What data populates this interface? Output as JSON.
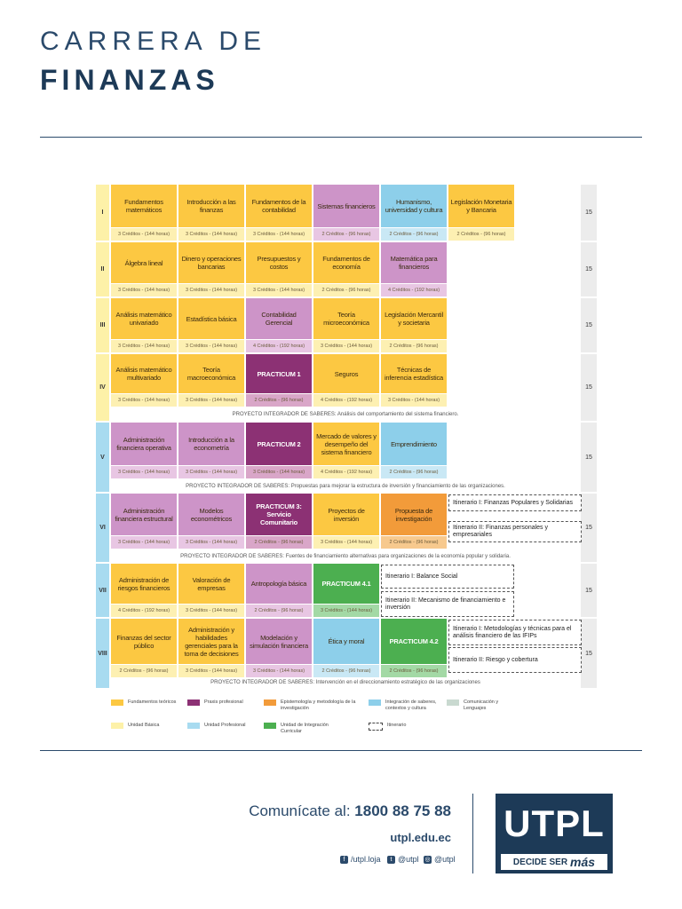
{
  "header": {
    "line1": "CARRERA DE",
    "line2": "FINANZAS"
  },
  "colors": {
    "fundamentos": "#fcc842",
    "fundamentos_light": "#fdf0b2",
    "praxis": "#8c3174",
    "praxis_light": "#d9a6c8",
    "epistemologia": "#f29b3a",
    "epistemologia_light": "#f7c98e",
    "integracion": "#8dcfea",
    "integracion_light": "#c9e8f5",
    "comunicacion": "#c9d9d0",
    "comunicacion_light": "#e3ece6",
    "unidad_basica": "#fdf1a8",
    "unidad_profesional": "#a8dbf0",
    "curricular": "#4caf50",
    "curricular_light": "#a3d9a5",
    "pink": "#cd94c8",
    "pink_light": "#e8c6e3"
  },
  "semesters": [
    {
      "label": "I",
      "total": "15",
      "courses": [
        {
          "name": "Fundamentos matemáticos",
          "credits": "3 Créditos - (144 horas)",
          "color": "#fcc842",
          "light": "#fdf0b2",
          "dark": false
        },
        {
          "name": "Introducción a las finanzas",
          "credits": "3 Créditos - (144 horas)",
          "color": "#fcc842",
          "light": "#fdf0b2",
          "dark": false
        },
        {
          "name": "Fundamentos de la contabilidad",
          "credits": "3 Créditos - (144 horas)",
          "color": "#fcc842",
          "light": "#fdf0b2",
          "dark": false
        },
        {
          "name": "Sistemas financieros",
          "credits": "2 Créditos - (96 horas)",
          "color": "#cd94c8",
          "light": "#e8c6e3",
          "dark": false
        },
        {
          "name": "Humanismo, universidad y cultura",
          "credits": "2 Créditos - (96 horas)",
          "color": "#8dcfea",
          "light": "#c9e8f5",
          "dark": false
        },
        {
          "name": "Legislación Monetaria y Bancaria",
          "credits": "2 Créditos - (96 horas)",
          "color": "#fcc842",
          "light": "#fdf0b2",
          "dark": false
        }
      ]
    },
    {
      "label": "II",
      "total": "15",
      "courses": [
        {
          "name": "Álgebra lineal",
          "credits": "3 Créditos - (144 horas)",
          "color": "#fcc842",
          "light": "#fdf0b2",
          "dark": false
        },
        {
          "name": "Dinero y operaciones bancarias",
          "credits": "3 Créditos - (144 horas)",
          "color": "#fcc842",
          "light": "#fdf0b2",
          "dark": false
        },
        {
          "name": "Presupuestos y costos",
          "credits": "3 Créditos - (144 horas)",
          "color": "#fcc842",
          "light": "#fdf0b2",
          "dark": false
        },
        {
          "name": "Fundamentos de economía",
          "credits": "2 Créditos - (96 horas)",
          "color": "#fcc842",
          "light": "#fdf0b2",
          "dark": false
        },
        {
          "name": "Matemática para financieros",
          "credits": "4 Créditos - (192 horas)",
          "color": "#cd94c8",
          "light": "#e8c6e3",
          "dark": false
        }
      ]
    },
    {
      "label": "III",
      "total": "15",
      "courses": [
        {
          "name": "Análisis matemático univariado",
          "credits": "3 Créditos - (144 horas)",
          "color": "#fcc842",
          "light": "#fdf0b2",
          "dark": false
        },
        {
          "name": "Estadística básica",
          "credits": "3 Créditos - (144 horas)",
          "color": "#fcc842",
          "light": "#fdf0b2",
          "dark": false
        },
        {
          "name": "Contabilidad Gerencial",
          "credits": "4 Créditos - (192 horas)",
          "color": "#cd94c8",
          "light": "#e8c6e3",
          "dark": false
        },
        {
          "name": "Teoría microeconómica",
          "credits": "3 Créditos - (144 horas)",
          "color": "#fcc842",
          "light": "#fdf0b2",
          "dark": false
        },
        {
          "name": "Legislación Mercantil y societaria",
          "credits": "2 Créditos - (96 horas)",
          "color": "#fcc842",
          "light": "#fdf0b2",
          "dark": false
        }
      ]
    },
    {
      "label": "IV",
      "total": "15",
      "courses": [
        {
          "name": "Análisis matemático multivariado",
          "credits": "3 Créditos - (144 horas)",
          "color": "#fcc842",
          "light": "#fdf0b2",
          "dark": false
        },
        {
          "name": "Teoría macroeconómica",
          "credits": "3 Créditos - (144 horas)",
          "color": "#fcc842",
          "light": "#fdf0b2",
          "dark": false
        },
        {
          "name": "PRACTICUM 1",
          "credits": "2 Créditos - (96 horas)",
          "color": "#8c3174",
          "light": "#d9a6c8",
          "dark": true
        },
        {
          "name": "Seguros",
          "credits": "4 Créditos - (192 horas)",
          "color": "#fcc842",
          "light": "#fdf0b2",
          "dark": false
        },
        {
          "name": "Técnicas de inferencia estadística",
          "credits": "3 Créditos - (144 horas)",
          "color": "#fcc842",
          "light": "#fdf0b2",
          "dark": false
        }
      ],
      "project": "PROYECTO INTEGRADOR DE SABERES: Análisis del comportamiento del sistema financiero."
    },
    {
      "label": "V",
      "total": "15",
      "courses": [
        {
          "name": "Administración financiera operativa",
          "credits": "3 Créditos - (144 horas)",
          "color": "#cd94c8",
          "light": "#e8c6e3",
          "dark": false
        },
        {
          "name": "Introducción a la econometría",
          "credits": "3 Créditos - (144 horas)",
          "color": "#cd94c8",
          "light": "#e8c6e3",
          "dark": false
        },
        {
          "name": "PRACTICUM 2",
          "credits": "3 Créditos - (144 horas)",
          "color": "#8c3174",
          "light": "#d9a6c8",
          "dark": true
        },
        {
          "name": "Mercado de valores y desempeño del sistema financiero",
          "credits": "4 Créditos - (192 horas)",
          "color": "#fcc842",
          "light": "#fdf0b2",
          "dark": false
        },
        {
          "name": "Emprendimiento",
          "credits": "2 Créditos - (96 horas)",
          "color": "#8dcfea",
          "light": "#c9e8f5",
          "dark": false
        }
      ],
      "project": "PROYECTO INTEGRADOR DE SABERES: Propuestas para mejorar la estructura de inversión y financiamiento de las organizaciones."
    },
    {
      "label": "VI",
      "total": "15",
      "courses": [
        {
          "name": "Administración financiera estructural",
          "credits": "3 Créditos - (144 horas)",
          "color": "#cd94c8",
          "light": "#e8c6e3",
          "dark": false
        },
        {
          "name": "Modelos econométricos",
          "credits": "3 Créditos - (144 horas)",
          "color": "#cd94c8",
          "light": "#e8c6e3",
          "dark": false
        },
        {
          "name": "PRACTICUM 3: Servicio Comunitario",
          "credits": "2 Créditos - (96 horas)",
          "color": "#8c3174",
          "light": "#d9a6c8",
          "dark": true
        },
        {
          "name": "Proyectos de inversión",
          "credits": "3 Créditos - (144 horas)",
          "color": "#fcc842",
          "light": "#fdf0b2",
          "dark": false
        },
        {
          "name": "Propuesta de investigación",
          "credits": "2 Créditos - (96 horas)",
          "color": "#f29b3a",
          "light": "#f7c98e",
          "dark": false
        }
      ],
      "itineraries": [
        "Itinerario I: Finanzas Populares y Solidarias",
        "Itinerario II: Finanzas personales y empresariales"
      ],
      "project": "PROYECTO INTEGRADOR DE SABERES: Fuentes de financiamiento alternativas para organizaciones de la economía popular y solidaria."
    },
    {
      "label": "VII",
      "total": "15",
      "courses": [
        {
          "name": "Administración de riesgos financieros",
          "credits": "4 Créditos - (192 horas)",
          "color": "#fcc842",
          "light": "#fdf0b2",
          "dark": false
        },
        {
          "name": "Valoración de empresas",
          "credits": "3 Créditos - (144 horas)",
          "color": "#fcc842",
          "light": "#fdf0b2",
          "dark": false
        },
        {
          "name": "Antropología básica",
          "credits": "2 Créditos - (96 horas)",
          "color": "#cd94c8",
          "light": "#e8c6e3",
          "dark": false
        },
        {
          "name": "PRACTICUM 4.1",
          "credits": "3 Créditos - (144 horas)",
          "color": "#4caf50",
          "light": "#a3d9a5",
          "dark": true
        }
      ],
      "itineraries": [
        "Itinerario I: Balance Social",
        "Itinerario II: Mecanismo de financiamiento e inversión"
      ]
    },
    {
      "label": "VIII",
      "total": "15",
      "courses": [
        {
          "name": "Finanzas del sector público",
          "credits": "2 Créditos - (96 horas)",
          "color": "#fcc842",
          "light": "#fdf0b2",
          "dark": false
        },
        {
          "name": "Administración y habilidades gerenciales para la toma de decisiones",
          "credits": "3 Créditos - (144 horas)",
          "color": "#fcc842",
          "light": "#fdf0b2",
          "dark": false
        },
        {
          "name": "Modelación y simulación financiera",
          "credits": "3 Créditos - (144 horas)",
          "color": "#cd94c8",
          "light": "#e8c6e3",
          "dark": false
        },
        {
          "name": "Ética y moral",
          "credits": "2 Créditos - (96 horas)",
          "color": "#8dcfea",
          "light": "#c9e8f5",
          "dark": false
        },
        {
          "name": "PRACTICUM 4.2",
          "credits": "2 Créditos - (96 horas)",
          "color": "#4caf50",
          "light": "#a3d9a5",
          "dark": true
        }
      ],
      "itineraries": [
        "Itinerario I: Metodologías y técnicas para el análisis financiero de las IFIPs",
        "Itinerario II: Riesgo y cobertura"
      ],
      "project": "PROYECTO INTEGRADOR DE SABERES: Intervención en el direccionamiento estratégico de las organizaciones"
    }
  ],
  "legend": [
    {
      "label": "Fundamentos teóricos",
      "color": "#fcc842",
      "dashed": false
    },
    {
      "label": "Praxis profesional",
      "color": "#8c3174",
      "dashed": false
    },
    {
      "label": "Epistemología y metodología de la investigación",
      "color": "#f29b3a",
      "dashed": false
    },
    {
      "label": "Integración de saberes, contextos y cultura",
      "color": "#8dcfea",
      "dashed": false
    },
    {
      "label": "Comunicación y Lenguajes",
      "color": "#c9d9d0",
      "dashed": false
    },
    {
      "label": "Unidad Básica",
      "color": "#fdf1a8",
      "dashed": false
    },
    {
      "label": "Unidad Profesional",
      "color": "#a8dbf0",
      "dashed": false
    },
    {
      "label": "Unidad de Integración Curricular",
      "color": "#4caf50",
      "dashed": false
    },
    {
      "label": "Itinerario",
      "color": "#ffffff",
      "dashed": true
    }
  ],
  "footer": {
    "contact_label": "Comunícate al:",
    "phone": "1800 88 75 88",
    "website": "utpl.edu.ec",
    "facebook": "/utpl.loja",
    "twitter": "@utpl",
    "instagram": "@utpl",
    "logo_text": "UTPL",
    "tag_text": "DECIDE SER",
    "tag_emph": "más"
  }
}
